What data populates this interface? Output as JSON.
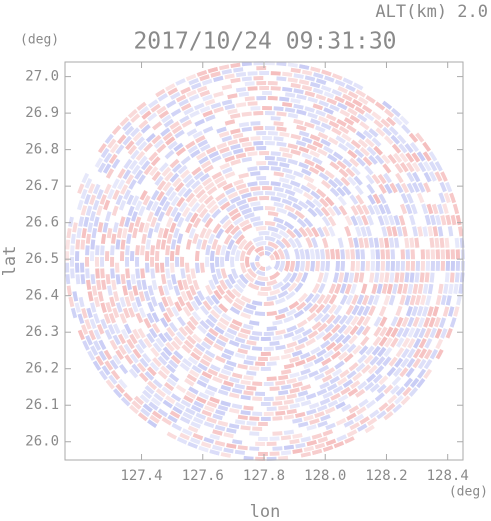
{
  "chart_data": {
    "type": "radar-ppi",
    "title": "2017/10/24 09:31:30",
    "altitude_label": "ALT(km) 2.0",
    "x_label": "lon",
    "x_unit": "(deg)",
    "y_label": "lat",
    "y_unit": "(deg)",
    "xlim": [
      127.15,
      128.45
    ],
    "xticks": [
      {
        "value": 127.4,
        "label": "127.4"
      },
      {
        "value": 127.6,
        "label": "127.6"
      },
      {
        "value": 127.8,
        "label": "127.8"
      },
      {
        "value": 128.0,
        "label": "128.0"
      },
      {
        "value": 128.2,
        "label": "128.2"
      },
      {
        "value": 128.4,
        "label": "128.4"
      }
    ],
    "ylim": [
      25.95,
      27.04
    ],
    "yticks": [
      {
        "value": 26.0,
        "label": "26.0"
      },
      {
        "value": 26.1,
        "label": "26.1"
      },
      {
        "value": 26.2,
        "label": "26.2"
      },
      {
        "value": 26.3,
        "label": "26.3"
      },
      {
        "value": 26.4,
        "label": "26.4"
      },
      {
        "value": 26.5,
        "label": "26.5"
      },
      {
        "value": 26.6,
        "label": "26.6"
      },
      {
        "value": 26.7,
        "label": "26.7"
      },
      {
        "value": 26.8,
        "label": "26.8"
      },
      {
        "value": 26.9,
        "label": "26.9"
      },
      {
        "value": 27.0,
        "label": "27.0"
      }
    ]
  }
}
